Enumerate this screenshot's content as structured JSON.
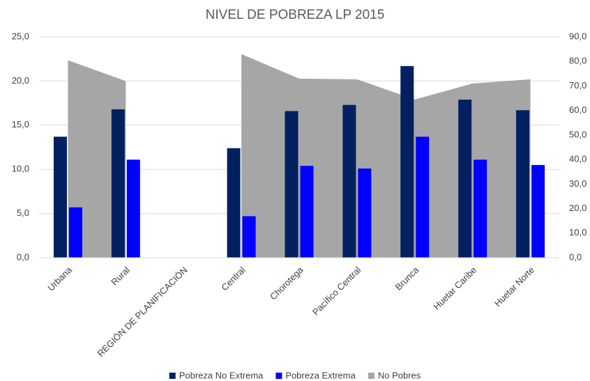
{
  "chart_data": {
    "type": "bar-area",
    "title": "NIVEL DE POBREZA LP 2015",
    "categories": [
      "Urbana",
      "Rural",
      "REGIÓN DE PLANIFICACIÓN",
      "Central",
      "Chorotega",
      "Pacífico Central",
      "Brunca",
      "Huetar Caribe",
      "Huetar Norte"
    ],
    "series": [
      {
        "name": "Pobreza No Extrema",
        "color": "#002060",
        "type": "bar",
        "values": [
          13.7,
          16.8,
          null,
          12.4,
          16.6,
          17.3,
          21.7,
          17.9,
          16.7
        ]
      },
      {
        "name": "Pobreza Extrema",
        "color": "#0000ff",
        "type": "bar",
        "values": [
          5.7,
          11.1,
          null,
          4.7,
          10.4,
          10.1,
          13.7,
          11.1,
          10.5
        ]
      },
      {
        "name": "No Pobres",
        "color": "#a6a6a6",
        "type": "area",
        "axis": "y2",
        "values": [
          80.5,
          72.0,
          null,
          83.0,
          73.0,
          72.7,
          64.5,
          71.0,
          72.7
        ]
      }
    ],
    "ylim": [
      0,
      25
    ],
    "yticks": [
      {
        "value": 0,
        "label": "0,0"
      },
      {
        "value": 5,
        "label": "5,0"
      },
      {
        "value": 10,
        "label": "10,0"
      },
      {
        "value": 15,
        "label": "15,0"
      },
      {
        "value": 20,
        "label": "20,0"
      },
      {
        "value": 25,
        "label": "25,0"
      }
    ],
    "y2lim": [
      0,
      90
    ],
    "y2ticks": [
      {
        "value": 0,
        "label": "0,0"
      },
      {
        "value": 10,
        "label": "10,0"
      },
      {
        "value": 20,
        "label": "20,0"
      },
      {
        "value": 30,
        "label": "30,0"
      },
      {
        "value": 40,
        "label": "40,0"
      },
      {
        "value": 50,
        "label": "50,0"
      },
      {
        "value": 60,
        "label": "60,0"
      },
      {
        "value": 70,
        "label": "70,0"
      },
      {
        "value": 80,
        "label": "80,0"
      },
      {
        "value": 90,
        "label": "90,0"
      }
    ],
    "grid": true,
    "legend": "bottom"
  }
}
